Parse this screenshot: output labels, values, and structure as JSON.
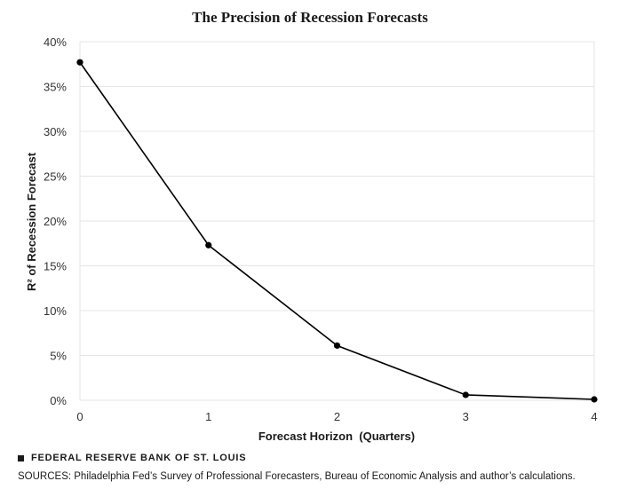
{
  "chart_data": {
    "type": "line",
    "title": "The Precision of Recession Forecasts",
    "xlabel": "Forecast Horizon  (Quarters)",
    "ylabel": "R² of Recession Forecast",
    "x": [
      0,
      1,
      2,
      3,
      4
    ],
    "series": [
      {
        "values": [
          37.7,
          17.3,
          6.1,
          0.6,
          0.1
        ]
      }
    ],
    "xlim": [
      0,
      4
    ],
    "ylim": [
      0,
      40
    ],
    "yticks": [
      0,
      5,
      10,
      15,
      20,
      25,
      30,
      35,
      40
    ],
    "ytick_labels": [
      "0%",
      "5%",
      "10%",
      "15%",
      "20%",
      "25%",
      "30%",
      "35%",
      "40%"
    ],
    "xtick_labels": [
      "0",
      "1",
      "2",
      "3",
      "4"
    ],
    "grid": true,
    "line_color": "#000000",
    "grid_color": "#e6e6e6"
  },
  "footer": {
    "brand": "FEDERAL RESERVE BANK OF ST. LOUIS",
    "sources": "SOURCES: Philadelphia Fed’s Survey of Professional Forecasters, Bureau of Economic Analysis and author’s calculations."
  }
}
